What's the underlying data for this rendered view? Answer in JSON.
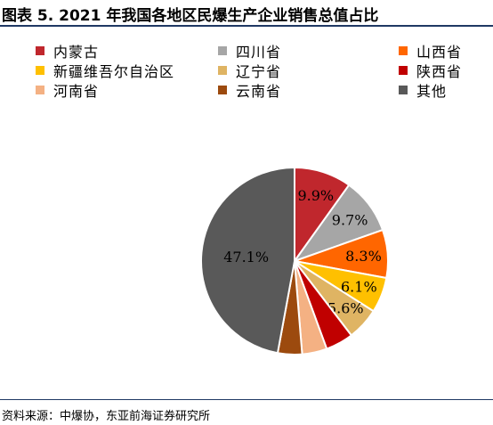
{
  "title": "图表 5.  2021 年我国各地区民爆生产企业销售总值占比",
  "source": "资料来源：中爆协，东亚前海证券研究所",
  "chart_data": {
    "type": "pie",
    "title": "图表 5.  2021 年我国各地区民爆生产企业销售总值占比",
    "legend_position": "top",
    "slices": [
      {
        "name": "内蒙古",
        "value": 9.9,
        "label": "9.9%",
        "color": "#c0272d"
      },
      {
        "name": "四川省",
        "value": 9.7,
        "label": "9.7%",
        "color": "#a6a6a6"
      },
      {
        "name": "山西省",
        "value": 8.3,
        "label": "8.3%",
        "color": "#ff6600"
      },
      {
        "name": "新疆维吾尔自治区",
        "value": 6.1,
        "label": "6.1%",
        "color": "#ffc000"
      },
      {
        "name": "辽宁省",
        "value": 5.6,
        "label": "5.6%",
        "color": "#dfb463"
      },
      {
        "name": "陕西省",
        "value": 4.8,
        "label": "",
        "color": "#c00000"
      },
      {
        "name": "河南省",
        "value": 4.3,
        "label": "",
        "color": "#f4b183"
      },
      {
        "name": "云南省",
        "value": 4.2,
        "label": "",
        "color": "#9c4a0e"
      },
      {
        "name": "其他",
        "value": 47.1,
        "label": "47.1%",
        "color": "#595959"
      }
    ]
  }
}
